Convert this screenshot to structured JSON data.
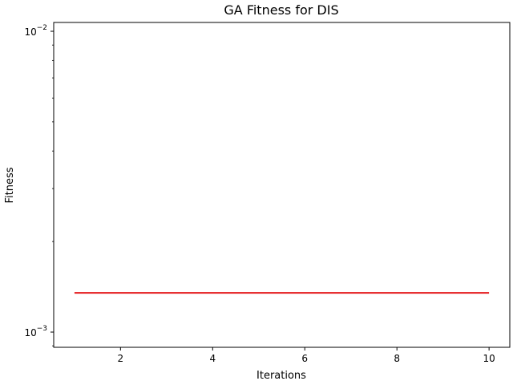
{
  "chart_data": {
    "type": "line",
    "title": "GA Fitness for DIS",
    "xlabel": "Iterations",
    "ylabel": "Fitness",
    "yscale": "log",
    "xlim": [
      0.55,
      10.45
    ],
    "ylim": [
      0.00089,
      0.0107
    ],
    "x_ticks": [
      2,
      4,
      6,
      8,
      10
    ],
    "y_ticks": [
      {
        "value": 0.001,
        "base": "10",
        "exp": "−3"
      },
      {
        "value": 0.01,
        "base": "10",
        "exp": "−2"
      }
    ],
    "grid": false,
    "series": [
      {
        "color": "#e41a1c",
        "x": [
          1,
          2,
          3,
          4,
          5,
          6,
          7,
          8,
          9,
          10
        ],
        "values": [
          0.00135,
          0.00135,
          0.00135,
          0.00135,
          0.00135,
          0.00135,
          0.00135,
          0.00135,
          0.00135,
          0.00135
        ]
      }
    ]
  }
}
